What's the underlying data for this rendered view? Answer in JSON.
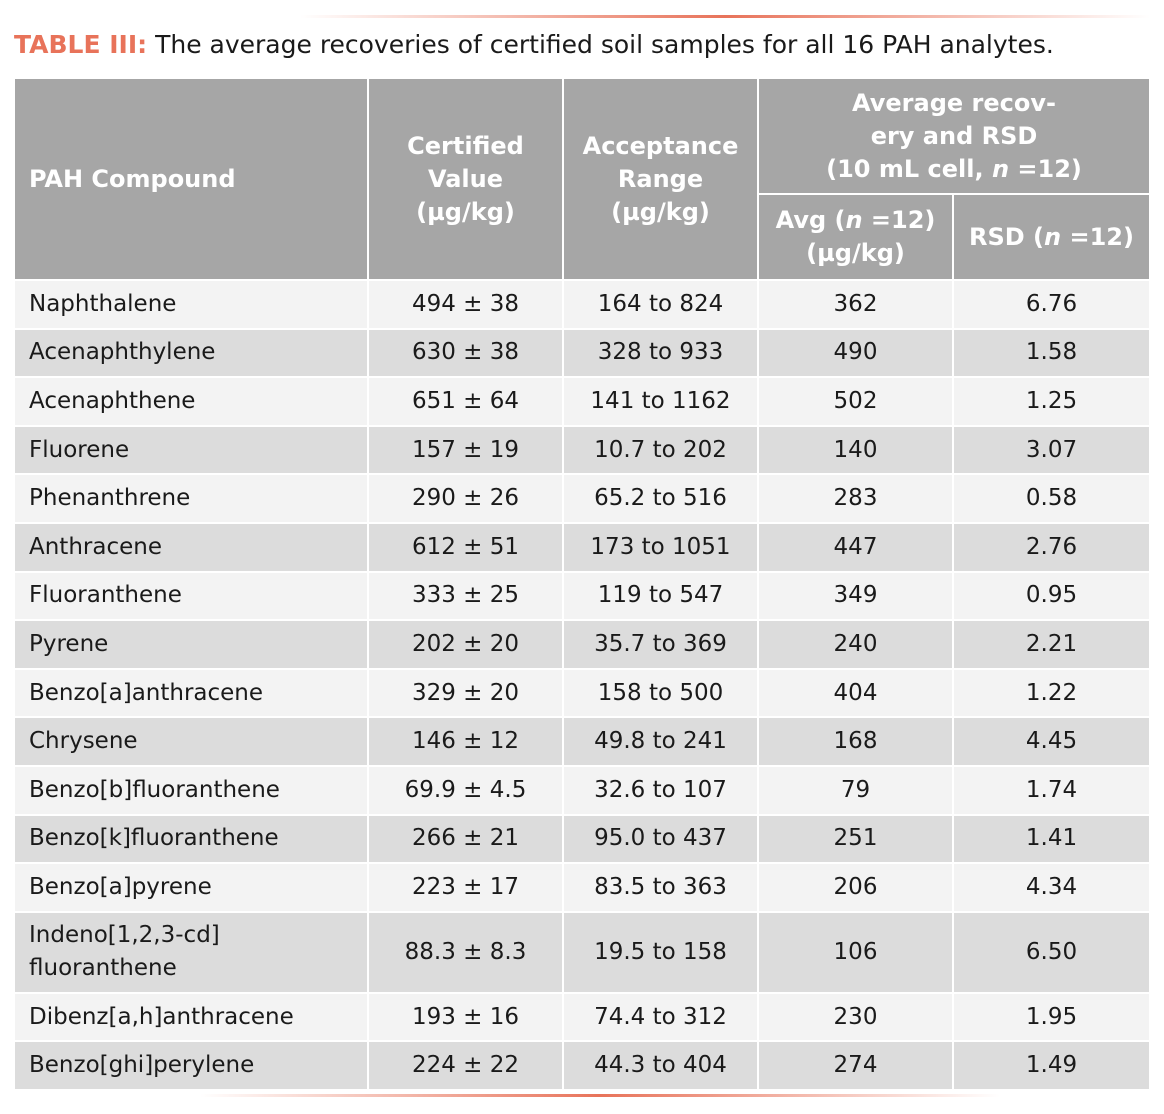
{
  "caption": {
    "label": "TABLE III:",
    "text": " The average recoveries of certified soil samples for all 16 PAH analytes."
  },
  "header": {
    "compound": [
      [
        "PAH Compound"
      ]
    ],
    "certified": [
      [
        "Certified"
      ],
      [
        "Value"
      ],
      [
        "(µg/kg)"
      ]
    ],
    "acceptance": [
      [
        "Acceptance"
      ],
      [
        "Range"
      ],
      [
        "(µg/kg)"
      ]
    ],
    "group": [
      [
        "Average recov-"
      ],
      [
        "ery and RSD"
      ],
      [
        "(10 mL cell, ",
        {
          "text": "n",
          "italic": true
        },
        " =12)"
      ]
    ],
    "avg": [
      [
        "Avg (",
        {
          "text": "n",
          "italic": true
        },
        " =12)"
      ],
      [
        "(µg/kg)"
      ]
    ],
    "rsd": [
      [
        "RSD (",
        {
          "text": "n",
          "italic": true
        },
        " =12)"
      ]
    ]
  },
  "rows": [
    [
      "Naphthalene",
      "494 ± 38",
      "164 to 824",
      "362",
      "6.76"
    ],
    [
      "Acenaphthylene",
      "630 ± 38",
      "328 to 933",
      "490",
      "1.58"
    ],
    [
      "Acenaphthene",
      "651 ± 64",
      "141 to 1162",
      "502",
      "1.25"
    ],
    [
      "Fluorene",
      "157 ± 19",
      "10.7 to 202",
      "140",
      "3.07"
    ],
    [
      "Phenanthrene",
      "290 ± 26",
      "65.2 to 516",
      "283",
      "0.58"
    ],
    [
      "Anthracene",
      "612 ± 51",
      "173 to 1051",
      "447",
      "2.76"
    ],
    [
      "Fluoranthene",
      "333 ± 25",
      "119 to 547",
      "349",
      "0.95"
    ],
    [
      "Pyrene",
      "202 ± 20",
      "35.7 to 369",
      "240",
      "2.21"
    ],
    [
      "Benzo[a]anthracene",
      "329 ± 20",
      "158 to 500",
      "404",
      "1.22"
    ],
    [
      "Chrysene",
      "146 ± 12",
      "49.8 to 241",
      "168",
      "4.45"
    ],
    [
      "Benzo[b]fluoranthene",
      "69.9 ± 4.5",
      "32.6 to 107",
      "79",
      "1.74"
    ],
    [
      "Benzo[k]fluoranthene",
      "266 ± 21",
      "95.0 to 437",
      "251",
      "1.41"
    ],
    [
      "Benzo[a]pyrene",
      "223 ± 17",
      "83.5 to 363",
      "206",
      "4.34"
    ],
    [
      [
        "Indeno[1,2,3-cd]",
        "fluoranthene"
      ],
      "88.3 ± 8.3",
      "19.5 to 158",
      "106",
      "6.50"
    ],
    [
      "Dibenz[a,h]anthracene",
      "193 ± 16",
      "74.4 to 312",
      "230",
      "1.95"
    ],
    [
      "Benzo[ghi]perylene",
      "224 ± 22",
      "44.3 to 404",
      "274",
      "1.49"
    ]
  ]
}
